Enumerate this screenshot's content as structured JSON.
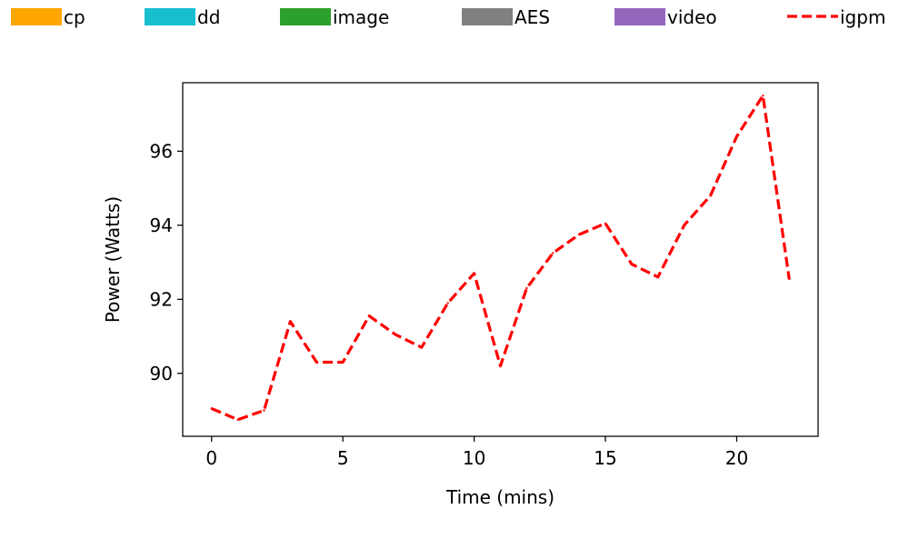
{
  "chart_data": {
    "type": "line",
    "title": "",
    "xlabel": "Time (mins)",
    "ylabel": "Power (Watts)",
    "xlim": [
      -1.1,
      23.1
    ],
    "ylim": [
      88.3,
      97.85
    ],
    "x_ticks": [
      0,
      5,
      10,
      15,
      20
    ],
    "y_ticks": [
      90,
      92,
      94,
      96
    ],
    "grid": false,
    "legend": {
      "placement": "top, above plot",
      "entries": [
        {
          "label": "cp",
          "kind": "patch",
          "color": "#ffa500"
        },
        {
          "label": "dd",
          "kind": "patch",
          "color": "#17becf"
        },
        {
          "label": "image",
          "kind": "patch",
          "color": "#2ca02c"
        },
        {
          "label": "AES",
          "kind": "patch",
          "color": "#808080"
        },
        {
          "label": "video",
          "kind": "patch",
          "color": "#9467bd"
        },
        {
          "label": "igpm",
          "kind": "line",
          "style": "dashed",
          "color": "#ff0000"
        }
      ]
    },
    "series": [
      {
        "name": "igpm",
        "color": "#ff0000",
        "style": "dashed",
        "x": [
          0,
          1,
          2,
          3,
          4,
          5,
          6,
          7,
          8,
          9,
          10,
          11,
          12,
          13,
          14,
          15,
          16,
          17,
          18,
          19,
          20,
          21,
          22
        ],
        "values": [
          89.05,
          88.75,
          89.0,
          91.4,
          90.3,
          90.3,
          91.55,
          91.05,
          90.7,
          91.9,
          92.7,
          90.2,
          92.3,
          93.25,
          93.75,
          94.05,
          92.95,
          92.6,
          94.0,
          94.8,
          96.4,
          97.5,
          92.55
        ]
      }
    ]
  }
}
